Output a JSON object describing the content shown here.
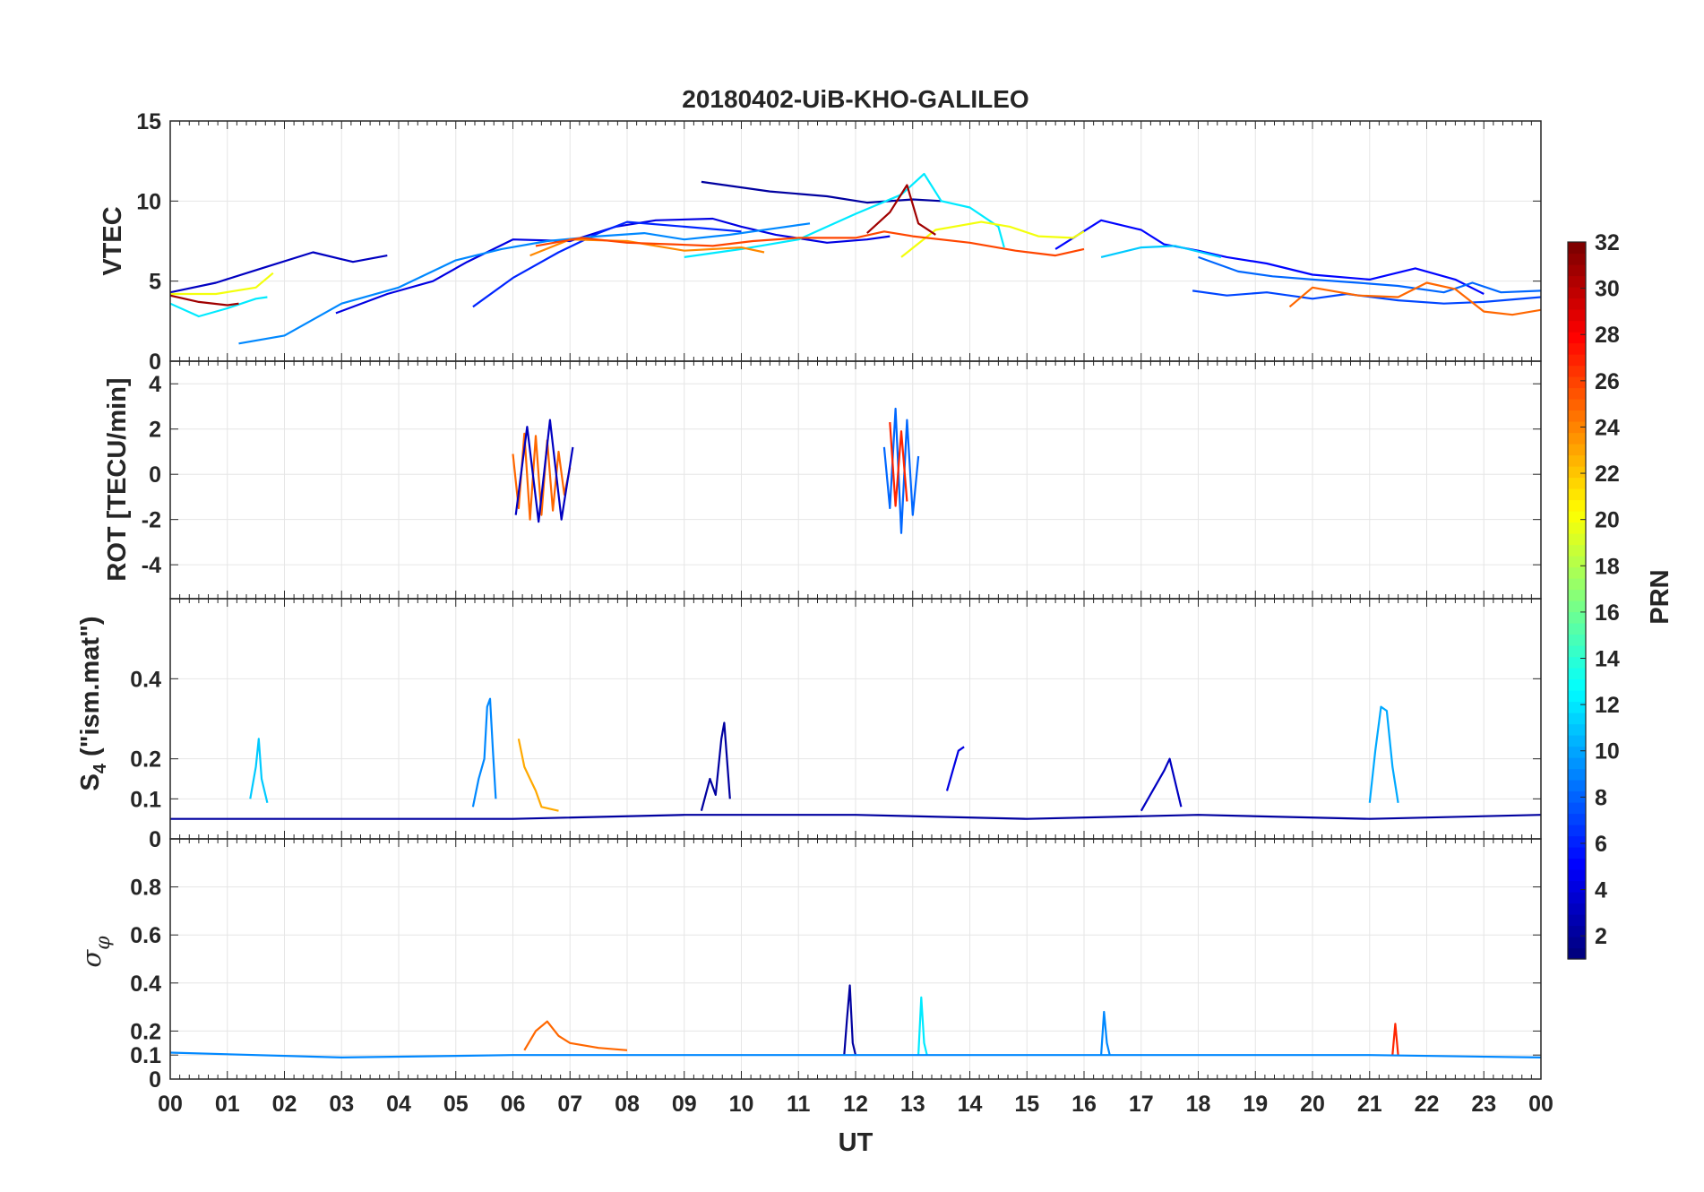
{
  "chart_data": {
    "title": "20180402-UiB-KHO-GALILEO",
    "xlabel": "UT",
    "x_tick_labels": [
      "00",
      "01",
      "02",
      "03",
      "04",
      "05",
      "06",
      "07",
      "08",
      "09",
      "10",
      "11",
      "12",
      "13",
      "14",
      "15",
      "16",
      "17",
      "18",
      "19",
      "20",
      "21",
      "22",
      "23",
      "00"
    ],
    "xlim": [
      0,
      24
    ],
    "grid": true,
    "colorbar": {
      "label": "PRN",
      "range": [
        1,
        32
      ],
      "ticks": [
        2,
        4,
        6,
        8,
        10,
        12,
        14,
        16,
        18,
        20,
        22,
        24,
        26,
        28,
        30,
        32
      ],
      "colormap": "jet",
      "placement": "right"
    },
    "panels": [
      {
        "name": "vtec",
        "type": "line",
        "ylabel": "VTEC",
        "ylim": [
          0,
          15
        ],
        "yticks": [
          0,
          5,
          10,
          15
        ],
        "series": [
          {
            "prn": 2,
            "x": [
              9.3,
              10.5,
              11.5,
              12.2,
              13.0,
              13.5
            ],
            "y": [
              11.2,
              10.6,
              10.3,
              9.9,
              10.1,
              10.0
            ]
          },
          {
            "prn": 3,
            "x": [
              0.0,
              0.8,
              1.6,
              2.5,
              3.2,
              3.8
            ],
            "y": [
              4.3,
              4.9,
              5.8,
              6.8,
              6.2,
              6.6
            ]
          },
          {
            "prn": 4,
            "x": [
              2.9,
              3.8,
              4.6,
              5.2,
              6.0,
              7.0,
              7.8,
              8.5,
              9.5,
              10.0,
              10.6,
              11.5,
              12.2,
              12.6
            ],
            "y": [
              3.0,
              4.2,
              5.0,
              6.2,
              7.6,
              7.5,
              8.4,
              8.8,
              8.9,
              8.4,
              7.9,
              7.4,
              7.6,
              7.8
            ]
          },
          {
            "prn": 5,
            "x": [
              15.5,
              16.3,
              17.0,
              17.4,
              18.0,
              18.5,
              19.2,
              20.0,
              21.0,
              21.8,
              22.5,
              23.0
            ],
            "y": [
              7.0,
              8.8,
              8.2,
              7.3,
              6.9,
              6.5,
              6.1,
              5.4,
              5.1,
              5.8,
              5.1,
              4.2
            ]
          },
          {
            "prn": 6,
            "x": [
              5.3,
              6.0,
              6.8,
              7.5,
              8.0,
              9.0,
              10.0
            ],
            "y": [
              3.4,
              5.2,
              6.8,
              8.0,
              8.7,
              8.4,
              8.1
            ]
          },
          {
            "prn": 7,
            "x": [
              17.9,
              18.5,
              19.2,
              20.0,
              20.6,
              21.5,
              22.3,
              23.0,
              24.0
            ],
            "y": [
              4.4,
              4.1,
              4.3,
              3.9,
              4.2,
              3.8,
              3.6,
              3.7,
              4.0
            ]
          },
          {
            "prn": 8,
            "x": [
              18.0,
              18.7,
              19.3,
              20.0,
              20.8,
              21.5,
              22.3,
              22.8,
              23.3,
              24.0
            ],
            "y": [
              6.5,
              5.6,
              5.3,
              5.1,
              4.9,
              4.7,
              4.3,
              4.9,
              4.3,
              4.4
            ]
          },
          {
            "prn": 9,
            "x": [
              1.2,
              2.0,
              3.0,
              4.0,
              5.0,
              5.8,
              6.6,
              7.5,
              8.3,
              9.0,
              9.8,
              10.6,
              11.2
            ],
            "y": [
              1.1,
              1.6,
              3.6,
              4.6,
              6.3,
              7.0,
              7.5,
              7.8,
              8.0,
              7.6,
              7.9,
              8.3,
              8.6
            ]
          },
          {
            "prn": 11,
            "x": [
              16.3,
              17.0,
              17.6,
              18.4
            ],
            "y": [
              6.5,
              7.1,
              7.2,
              6.5
            ]
          },
          {
            "prn": 12,
            "x": [
              0.0,
              0.5,
              1.0,
              1.5,
              1.7
            ],
            "y": [
              3.6,
              2.8,
              3.3,
              3.9,
              4.0
            ]
          },
          {
            "prn": 12,
            "x": [
              9.0,
              10.0,
              11.0,
              12.0,
              12.8,
              13.2,
              13.5,
              14.0,
              14.5,
              14.6
            ],
            "y": [
              6.5,
              7.0,
              7.6,
              9.2,
              10.4,
              11.7,
              10.0,
              9.6,
              8.4,
              7.1
            ]
          },
          {
            "prn": 20,
            "x": [
              0.0,
              0.8,
              1.5,
              1.8
            ],
            "y": [
              4.2,
              4.2,
              4.6,
              5.5
            ]
          },
          {
            "prn": 20,
            "x": [
              12.8,
              13.4,
              14.2,
              14.7,
              15.2,
              15.8,
              16.0
            ],
            "y": [
              6.5,
              8.2,
              8.7,
              8.4,
              7.8,
              7.7,
              8.1
            ]
          },
          {
            "prn": 24,
            "x": [
              6.3,
              7.0,
              8.0,
              9.0,
              10.0,
              10.4
            ],
            "y": [
              6.6,
              7.6,
              7.5,
              6.9,
              7.1,
              6.8
            ]
          },
          {
            "prn": 25,
            "x": [
              19.6,
              20.0,
              20.8,
              21.5,
              22.0,
              22.5,
              23.0,
              23.5,
              24.0
            ],
            "y": [
              3.4,
              4.6,
              4.1,
              4.0,
              4.9,
              4.5,
              3.1,
              2.9,
              3.2
            ]
          },
          {
            "prn": 26,
            "x": [
              6.4,
              7.2,
              8.0,
              8.8,
              9.5,
              10.2,
              11.0,
              12.0,
              12.5,
              13.0,
              14.0,
              14.8,
              15.5,
              16.0
            ],
            "y": [
              7.2,
              7.7,
              7.4,
              7.3,
              7.2,
              7.5,
              7.7,
              7.7,
              8.1,
              7.8,
              7.4,
              6.9,
              6.6,
              7.0
            ]
          },
          {
            "prn": 31,
            "x": [
              0.0,
              0.5,
              1.0,
              1.2
            ],
            "y": [
              4.1,
              3.7,
              3.5,
              3.6
            ]
          },
          {
            "prn": 31,
            "x": [
              12.2,
              12.6,
              12.9,
              13.1,
              13.4
            ],
            "y": [
              8.0,
              9.3,
              11.0,
              8.6,
              7.9
            ]
          }
        ]
      },
      {
        "name": "rot",
        "type": "line",
        "ylabel": "ROT [TECU/min]",
        "ylim": [
          -5.5,
          5
        ],
        "yticks": [
          -4,
          -2,
          0,
          2,
          4
        ],
        "series": [
          {
            "prn": 25,
            "x": [
              6.0,
              6.1,
              6.2,
              6.3,
              6.4,
              6.5,
              6.6,
              6.7,
              6.8,
              6.9,
              7.0
            ],
            "y": [
              0.9,
              -1.5,
              1.8,
              -2.0,
              1.7,
              -1.8,
              1.5,
              -1.6,
              1.0,
              -0.9,
              0.3
            ]
          },
          {
            "prn": 3,
            "x": [
              6.05,
              6.25,
              6.45,
              6.65,
              6.85,
              7.05
            ],
            "y": [
              -1.8,
              2.1,
              -2.1,
              2.4,
              -2.0,
              1.2
            ]
          },
          {
            "prn": 8,
            "x": [
              12.5,
              12.6,
              12.7,
              12.8,
              12.9,
              13.0,
              13.1
            ],
            "y": [
              1.2,
              -1.5,
              2.9,
              -2.6,
              2.4,
              -1.8,
              0.8
            ]
          },
          {
            "prn": 27,
            "x": [
              12.6,
              12.7,
              12.8,
              12.9
            ],
            "y": [
              2.3,
              -1.4,
              1.9,
              -1.2
            ]
          }
        ]
      },
      {
        "name": "s4",
        "type": "line",
        "ylabel": "S4 (\"ism.mat\")",
        "ylim": [
          0,
          0.6
        ],
        "yticks": [
          0,
          0.1,
          0.2,
          0.4
        ],
        "series": [
          {
            "prn": 9,
            "x": [
              5.3,
              5.4,
              5.5,
              5.55,
              5.6,
              5.65,
              5.7
            ],
            "y": [
              0.08,
              0.15,
              0.2,
              0.33,
              0.35,
              0.22,
              0.1
            ]
          },
          {
            "prn": 11,
            "x": [
              1.4,
              1.5,
              1.55,
              1.6,
              1.7
            ],
            "y": [
              0.1,
              0.18,
              0.25,
              0.15,
              0.09
            ]
          },
          {
            "prn": 23,
            "x": [
              6.1,
              6.2,
              6.3,
              6.4,
              6.5,
              6.8
            ],
            "y": [
              0.25,
              0.18,
              0.15,
              0.12,
              0.08,
              0.07
            ]
          },
          {
            "prn": 2,
            "x": [
              9.3,
              9.45,
              9.55,
              9.65,
              9.7,
              9.8
            ],
            "y": [
              0.07,
              0.15,
              0.11,
              0.25,
              0.29,
              0.1
            ]
          },
          {
            "prn": 4,
            "x": [
              13.6,
              13.7,
              13.8,
              13.9
            ],
            "y": [
              0.12,
              0.17,
              0.22,
              0.23
            ]
          },
          {
            "prn": 10,
            "x": [
              21.0,
              21.1,
              21.2,
              21.3,
              21.4,
              21.5
            ],
            "y": [
              0.09,
              0.22,
              0.33,
              0.32,
              0.18,
              0.09
            ]
          },
          {
            "prn": 3,
            "x": [
              17.0,
              17.2,
              17.4,
              17.5,
              17.7
            ],
            "y": [
              0.07,
              0.12,
              0.17,
              0.2,
              0.08
            ]
          },
          {
            "prn": 2,
            "x": [
              0.0,
              3.0,
              6.0,
              9.0,
              12.0,
              15.0,
              18.0,
              21.0,
              24.0
            ],
            "y": [
              0.05,
              0.05,
              0.05,
              0.06,
              0.06,
              0.05,
              0.06,
              0.05,
              0.06
            ]
          }
        ]
      },
      {
        "name": "sigma_phi",
        "type": "line",
        "ylabel": "σφ",
        "ylim": [
          0,
          1
        ],
        "yticks": [
          0,
          0.1,
          0.2,
          0.4,
          0.6,
          0.8
        ],
        "series": [
          {
            "prn": 2,
            "x": [
              11.8,
              11.85,
              11.9,
              11.95,
              12.0
            ],
            "y": [
              0.1,
              0.25,
              0.39,
              0.15,
              0.1
            ]
          },
          {
            "prn": 12,
            "x": [
              13.1,
              13.15,
              13.2,
              13.25
            ],
            "y": [
              0.1,
              0.34,
              0.15,
              0.1
            ]
          },
          {
            "prn": 9,
            "x": [
              16.3,
              16.35,
              16.4,
              16.45
            ],
            "y": [
              0.1,
              0.28,
              0.15,
              0.1
            ]
          },
          {
            "prn": 25,
            "x": [
              6.2,
              6.4,
              6.6,
              6.8,
              7.0,
              7.5,
              8.0
            ],
            "y": [
              0.12,
              0.2,
              0.24,
              0.18,
              0.15,
              0.13,
              0.12
            ]
          },
          {
            "prn": 27,
            "x": [
              21.4,
              21.45,
              21.5
            ],
            "y": [
              0.1,
              0.23,
              0.1
            ]
          },
          {
            "prn": 9,
            "x": [
              0.0,
              3.0,
              6.0,
              9.0,
              12.0,
              15.0,
              18.0,
              21.0,
              24.0
            ],
            "y": [
              0.11,
              0.09,
              0.1,
              0.1,
              0.1,
              0.1,
              0.1,
              0.1,
              0.09
            ]
          }
        ]
      }
    ]
  }
}
